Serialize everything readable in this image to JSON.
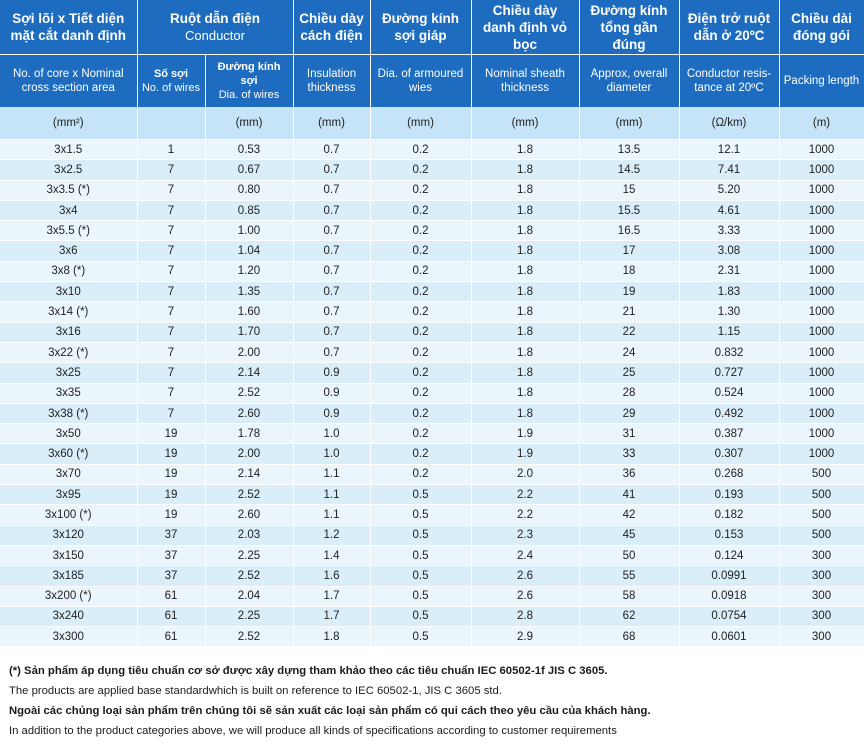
{
  "headers": {
    "col0_vi": "Sợi lõi x Tiết diện mặt cắt danh định",
    "conductor_vi": "Ruột dẫn điện",
    "conductor_en": "Conductor",
    "col3_vi": "Chiều dày cách điện",
    "col4_vi": "Đường kính sợi giáp",
    "col5_vi": "Chiều dày danh định vỏ bọc",
    "col6_vi": "Đường kính tổng gần đúng",
    "col7_vi": "Điện trở ruột dẫn ở 20ºC",
    "col8_vi": "Chiều dài đóng gói",
    "col0_en": "No. of core x Nominal cross section area",
    "col1_vi": "Số sợi",
    "col1_en": "No. of wires",
    "col2_vi": "Đường kính sợi",
    "col2_en": "Dia. of wires",
    "col3_en": "Insulation thickness",
    "col4_en": "Dia. of armoured wies",
    "col5_en": "Nominal sheath thickness",
    "col6_en": "Approx, overall diameter",
    "col7_en": "Conductor resis-tance at 20ºC",
    "col8_en": "Packing length"
  },
  "units": [
    "(mm²)",
    "",
    "(mm)",
    "(mm)",
    "(mm)",
    "(mm)",
    "(mm)",
    "(Ω/km)",
    "(m)"
  ],
  "rows": [
    [
      "3x1.5",
      "1",
      "0.53",
      "0.7",
      "0.2",
      "1.8",
      "13.5",
      "12.1",
      "1000"
    ],
    [
      "3x2.5",
      "7",
      "0.67",
      "0.7",
      "0.2",
      "1.8",
      "14.5",
      "7.41",
      "1000"
    ],
    [
      "3x3.5 (*)",
      "7",
      "0.80",
      "0.7",
      "0.2",
      "1.8",
      "15",
      "5.20",
      "1000"
    ],
    [
      "3x4",
      "7",
      "0.85",
      "0.7",
      "0.2",
      "1.8",
      "15.5",
      "4.61",
      "1000"
    ],
    [
      "3x5.5 (*)",
      "7",
      "1.00",
      "0.7",
      "0.2",
      "1.8",
      "16.5",
      "3.33",
      "1000"
    ],
    [
      "3x6",
      "7",
      "1.04",
      "0.7",
      "0.2",
      "1.8",
      "17",
      "3.08",
      "1000"
    ],
    [
      "3x8 (*)",
      "7",
      "1.20",
      "0.7",
      "0.2",
      "1.8",
      "18",
      "2.31",
      "1000"
    ],
    [
      "3x10",
      "7",
      "1.35",
      "0.7",
      "0.2",
      "1.8",
      "19",
      "1.83",
      "1000"
    ],
    [
      "3x14 (*)",
      "7",
      "1.60",
      "0.7",
      "0.2",
      "1.8",
      "21",
      "1.30",
      "1000"
    ],
    [
      "3x16",
      "7",
      "1.70",
      "0.7",
      "0.2",
      "1.8",
      "22",
      "1.15",
      "1000"
    ],
    [
      "3x22 (*)",
      "7",
      "2.00",
      "0.7",
      "0.2",
      "1.8",
      "24",
      "0.832",
      "1000"
    ],
    [
      "3x25",
      "7",
      "2.14",
      "0.9",
      "0.2",
      "1.8",
      "25",
      "0.727",
      "1000"
    ],
    [
      "3x35",
      "7",
      "2.52",
      "0.9",
      "0.2",
      "1.8",
      "28",
      "0.524",
      "1000"
    ],
    [
      "3x38 (*)",
      "7",
      "2.60",
      "0.9",
      "0.2",
      "1.8",
      "29",
      "0.492",
      "1000"
    ],
    [
      "3x50",
      "19",
      "1.78",
      "1.0",
      "0.2",
      "1.9",
      "31",
      "0.387",
      "1000"
    ],
    [
      "3x60 (*)",
      "19",
      "2.00",
      "1.0",
      "0.2",
      "1.9",
      "33",
      "0.307",
      "1000"
    ],
    [
      "3x70",
      "19",
      "2.14",
      "1.1",
      "0.2",
      "2.0",
      "36",
      "0.268",
      "500"
    ],
    [
      "3x95",
      "19",
      "2.52",
      "1.1",
      "0.5",
      "2.2",
      "41",
      "0.193",
      "500"
    ],
    [
      "3x100 (*)",
      "19",
      "2.60",
      "1.1",
      "0.5",
      "2.2",
      "42",
      "0.182",
      "500"
    ],
    [
      "3x120",
      "37",
      "2.03",
      "1.2",
      "0.5",
      "2.3",
      "45",
      "0.153",
      "500"
    ],
    [
      "3x150",
      "37",
      "2.25",
      "1.4",
      "0.5",
      "2.4",
      "50",
      "0.124",
      "300"
    ],
    [
      "3x185",
      "37",
      "2.52",
      "1.6",
      "0.5",
      "2.6",
      "55",
      "0.0991",
      "300"
    ],
    [
      "3x200 (*)",
      "61",
      "2.04",
      "1.7",
      "0.5",
      "2.6",
      "58",
      "0.0918",
      "300"
    ],
    [
      "3x240",
      "61",
      "2.25",
      "1.7",
      "0.5",
      "2.8",
      "62",
      "0.0754",
      "300"
    ],
    [
      "3x300",
      "61",
      "2.52",
      "1.8",
      "0.5",
      "2.9",
      "68",
      "0.0601",
      "300"
    ]
  ],
  "notes": {
    "line1": "(*) Sản phẩm áp dụng tiêu chuẩn cơ sở được xây dựng tham khảo theo các tiêu chuẩn IEC 60502-1f JIS C 3605.",
    "line2": "The products are applied base standardwhich is built on reference to IEC 60502-1, JIS C 3605 std.",
    "line3": "Ngoài các chủng loại sản phẩm trên chúng tôi sẽ sản xuất các loại sản phẩm có qui cách theo yêu cầu của khách hàng.",
    "line4": "In addition to the product categories above, we will produce all kinds of specifications according to customer requirements"
  },
  "colors": {
    "header_bg": "#1d6cc0",
    "units_bg": "#c5e4f7",
    "row_odd": "#eaf5fc",
    "row_even": "#d9eef9"
  }
}
